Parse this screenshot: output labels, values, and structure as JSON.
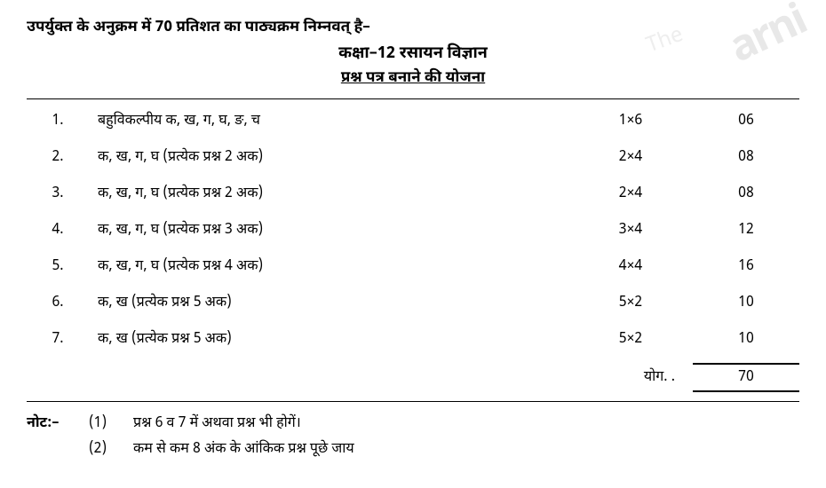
{
  "watermark_text": "arni",
  "watermark_text2": "The",
  "intro": "उपर्युक्त के अनुक्रम में 70 प्रतिशत का पाठ्यक्रम निम्नवत् है–",
  "title": "कक्षा–12 रसायन विज्ञान",
  "subtitle": "प्रश्न पत्र बनाने की योजना",
  "rows": [
    {
      "num": "1.",
      "desc": "बहुविकल्पीय क, ख, ग, घ, ङ, च",
      "mult": "1×6",
      "total": "06"
    },
    {
      "num": "2.",
      "desc": "क, ख, ग, घ (प्रत्येक प्रश्न 2 अक)",
      "mult": "2×4",
      "total": "08"
    },
    {
      "num": "3.",
      "desc": "क, ख, ग, घ (प्रत्येक प्रश्न 2 अक)",
      "mult": "2×4",
      "total": "08"
    },
    {
      "num": "4.",
      "desc": "क, ख, ग, घ (प्रत्येक प्रश्न 3 अक)",
      "mult": "3×4",
      "total": "12"
    },
    {
      "num": "5.",
      "desc": "क, ख, ग, घ (प्रत्येक प्रश्न 4 अक)",
      "mult": "4×4",
      "total": "16"
    },
    {
      "num": "6.",
      "desc": "क, ख (प्रत्येक प्रश्न 5 अक)",
      "mult": "5×2",
      "total": "10"
    },
    {
      "num": "7.",
      "desc": "क, ख (प्रत्येक प्रश्न 5 अक)",
      "mult": "5×2",
      "total": "10"
    }
  ],
  "total_label": "योग. .",
  "total_value": "70",
  "notes_label": "नोट:–",
  "notes": [
    {
      "num": "(1)",
      "text": "प्रश्न 6 व 7 में अथवा प्रश्न भी होगें।"
    },
    {
      "num": "(2)",
      "text": "कम से कम 8 अंक के आंकिक प्रश्न पूछे जाय"
    }
  ],
  "colors": {
    "text": "#000000",
    "bg": "#ffffff",
    "watermark": "#e8e8e8",
    "border": "#000000"
  },
  "fontsizes": {
    "intro": 17,
    "title": 18,
    "subtitle": 17,
    "row": 16,
    "notes": 16
  }
}
